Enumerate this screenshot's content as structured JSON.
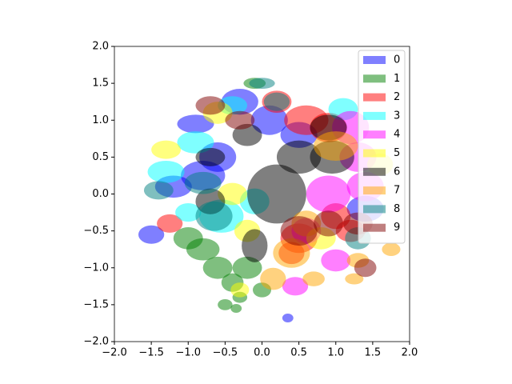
{
  "chart_data": {
    "type": "ellipse",
    "xlim": [
      -2,
      2
    ],
    "ylim": [
      -2,
      2
    ],
    "xticks": [
      {
        "value": -2,
        "label": "−2.0"
      },
      {
        "value": -1.5,
        "label": "−1.5"
      },
      {
        "value": -1,
        "label": "−1.0"
      },
      {
        "value": -0.5,
        "label": "−0.5"
      },
      {
        "value": 0,
        "label": "0.0"
      },
      {
        "value": 0.5,
        "label": "0.5"
      },
      {
        "value": 1,
        "label": "1.0"
      },
      {
        "value": 1.5,
        "label": "1.5"
      },
      {
        "value": 2,
        "label": "2.0"
      }
    ],
    "yticks": [
      {
        "value": -2,
        "label": "−2.0"
      },
      {
        "value": -1.5,
        "label": "−1.5"
      },
      {
        "value": -1,
        "label": "−1.0"
      },
      {
        "value": -0.5,
        "label": "−0.5"
      },
      {
        "value": 0,
        "label": "0.0"
      },
      {
        "value": 0.5,
        "label": "0.5"
      },
      {
        "value": 1,
        "label": "1.0"
      },
      {
        "value": 1.5,
        "label": "1.5"
      },
      {
        "value": 2,
        "label": "2.0"
      }
    ],
    "alpha": 0.5,
    "legend": "upper right",
    "series": [
      {
        "name": "0",
        "color": "#0000ff",
        "x": [
          -1.5,
          0.35,
          -0.8,
          -0.3,
          0.1,
          -0.9,
          1.4,
          -0.6,
          0.5,
          -1.2
        ],
        "y": [
          -0.55,
          -1.68,
          0.25,
          1.25,
          1.0,
          0.95,
          -0.2,
          0.5,
          0.8,
          0.1
        ],
        "width": [
          0.35,
          0.15,
          0.6,
          0.5,
          0.5,
          0.5,
          0.5,
          0.5,
          0.5,
          0.5
        ],
        "height": [
          0.25,
          0.12,
          0.4,
          0.35,
          0.4,
          0.25,
          0.35,
          0.4,
          0.35,
          0.3
        ]
      },
      {
        "name": "1",
        "color": "#008000",
        "x": [
          -1.0,
          -0.8,
          -0.6,
          -0.4,
          -0.3,
          -0.35,
          -0.2,
          -0.1,
          0.0,
          -0.5
        ],
        "y": [
          -0.6,
          -0.75,
          -1.0,
          -1.2,
          -1.4,
          -1.55,
          -1.0,
          1.5,
          -1.3,
          -1.5
        ],
        "width": [
          0.4,
          0.45,
          0.4,
          0.3,
          0.2,
          0.15,
          0.4,
          0.3,
          0.25,
          0.2
        ],
        "height": [
          0.3,
          0.3,
          0.3,
          0.25,
          0.15,
          0.12,
          0.3,
          0.15,
          0.2,
          0.15
        ]
      },
      {
        "name": "2",
        "color": "#ff0000",
        "x": [
          0.6,
          0.9,
          0.5,
          -1.25,
          1.2,
          0.2,
          0.4,
          1.0
        ],
        "y": [
          1.0,
          0.9,
          -0.6,
          -0.4,
          -0.5,
          1.25,
          -0.8,
          -0.3
        ],
        "width": [
          0.6,
          0.5,
          0.5,
          0.35,
          0.4,
          0.4,
          0.35,
          0.4
        ],
        "height": [
          0.4,
          0.4,
          0.4,
          0.25,
          0.3,
          0.3,
          0.3,
          0.35
        ]
      },
      {
        "name": "3",
        "color": "#00ffff",
        "x": [
          -0.55,
          -1.3,
          1.1,
          -0.9,
          -0.1,
          -0.4,
          -1.0
        ],
        "y": [
          -0.3,
          0.3,
          1.15,
          0.7,
          -0.1,
          1.2,
          -0.25
        ],
        "width": [
          0.6,
          0.5,
          0.4,
          0.5,
          0.4,
          0.4,
          0.35
        ],
        "height": [
          0.45,
          0.3,
          0.3,
          0.3,
          0.35,
          0.25,
          0.25
        ]
      },
      {
        "name": "4",
        "color": "#ff00ff",
        "x": [
          1.3,
          1.2,
          0.9,
          0.45,
          1.0,
          1.4,
          0.6
        ],
        "y": [
          0.5,
          0.9,
          0.0,
          -1.25,
          -0.9,
          0.1,
          -0.5
        ],
        "width": [
          0.5,
          0.5,
          0.6,
          0.35,
          0.4,
          0.5,
          0.4
        ],
        "height": [
          0.4,
          0.45,
          0.5,
          0.25,
          0.3,
          0.4,
          0.35
        ]
      },
      {
        "name": "5",
        "color": "#ffff00",
        "x": [
          -0.4,
          -1.3,
          -0.6,
          -0.3,
          0.8,
          1.6,
          -0.2
        ],
        "y": [
          0.0,
          0.6,
          1.1,
          -1.3,
          -0.6,
          0.4,
          -0.5
        ],
        "width": [
          0.4,
          0.4,
          0.4,
          0.25,
          0.4,
          0.35,
          0.35
        ],
        "height": [
          0.3,
          0.25,
          0.3,
          0.2,
          0.3,
          0.3,
          0.3
        ]
      },
      {
        "name": "6",
        "color": "#000000",
        "x": [
          0.2,
          0.5,
          0.95,
          -0.1,
          0.9,
          -0.7,
          -0.2,
          -0.7
        ],
        "y": [
          0.0,
          0.5,
          0.5,
          -0.7,
          0.9,
          0.5,
          0.8,
          -0.1
        ],
        "width": [
          0.8,
          0.6,
          0.6,
          0.35,
          0.5,
          0.4,
          0.4,
          0.4
        ],
        "height": [
          0.8,
          0.45,
          0.45,
          0.45,
          0.35,
          0.25,
          0.3,
          0.35
        ]
      },
      {
        "name": "7",
        "color": "#ffa500",
        "x": [
          1.0,
          0.4,
          1.3,
          1.75,
          0.15,
          0.7,
          1.25,
          0.6
        ],
        "y": [
          0.65,
          -0.8,
          -0.9,
          -0.75,
          -1.15,
          -1.15,
          -1.15,
          -0.4
        ],
        "width": [
          0.6,
          0.5,
          0.3,
          0.25,
          0.35,
          0.3,
          0.25,
          0.4
        ],
        "height": [
          0.4,
          0.4,
          0.2,
          0.18,
          0.3,
          0.2,
          0.15,
          0.35
        ]
      },
      {
        "name": "8",
        "color": "#008080",
        "x": [
          -0.65,
          0.2,
          0.0,
          1.3,
          -1.4,
          -0.8
        ],
        "y": [
          -0.3,
          1.25,
          1.5,
          -0.6,
          0.05,
          0.15
        ],
        "width": [
          0.5,
          0.35,
          0.35,
          0.35,
          0.4,
          0.5
        ],
        "height": [
          0.4,
          0.25,
          0.15,
          0.3,
          0.25,
          0.3
        ]
      },
      {
        "name": "9",
        "color": "#800000",
        "x": [
          0.5,
          1.4,
          -0.7,
          0.9,
          -0.3,
          1.3
        ],
        "y": [
          -0.5,
          -1.0,
          1.2,
          -0.4,
          1.0,
          -0.4
        ],
        "width": [
          0.5,
          0.3,
          0.4,
          0.4,
          0.4,
          0.4
        ],
        "height": [
          0.4,
          0.25,
          0.25,
          0.35,
          0.25,
          0.3
        ]
      }
    ]
  }
}
